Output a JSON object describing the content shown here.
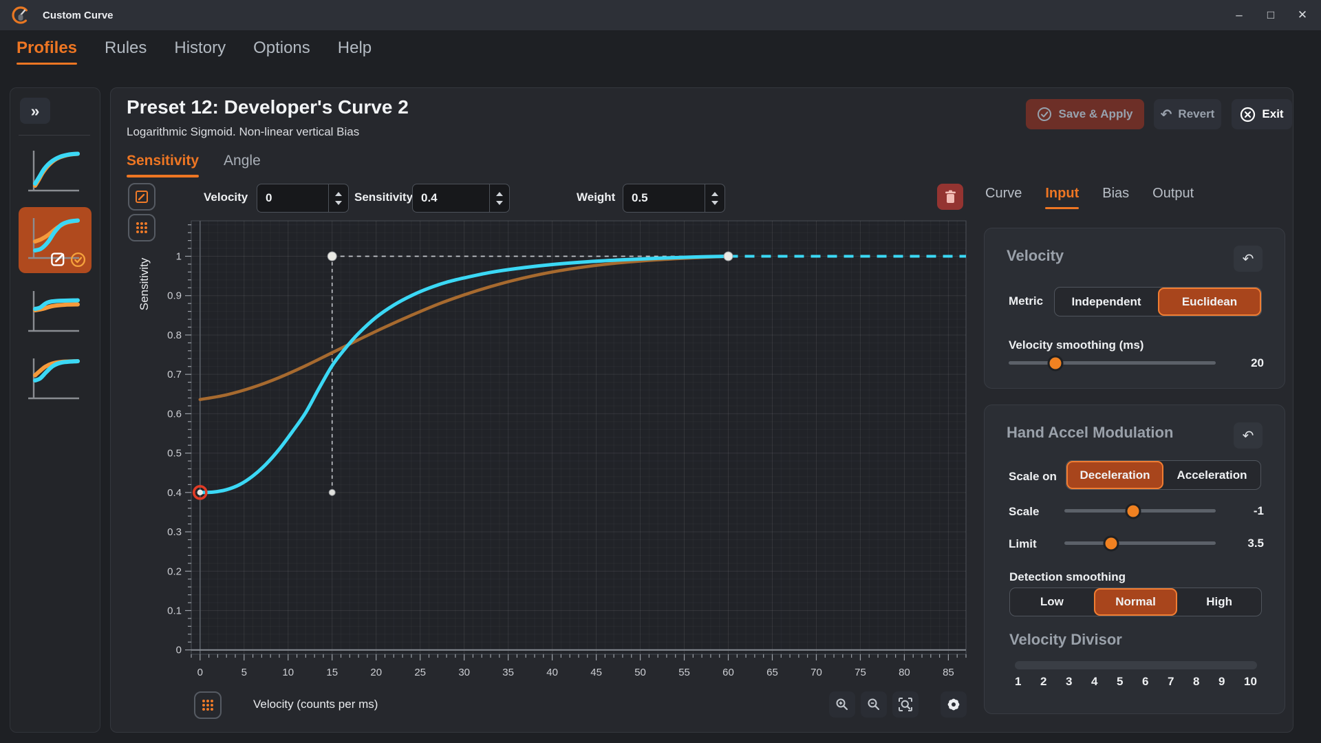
{
  "window": {
    "title": "Custom Curve",
    "controls": [
      "minimize",
      "maximize",
      "close"
    ]
  },
  "menu": {
    "items": [
      {
        "label": "Profiles",
        "active": true
      },
      {
        "label": "Rules",
        "active": false
      },
      {
        "label": "History",
        "active": false
      },
      {
        "label": "Options",
        "active": false
      },
      {
        "label": "Help",
        "active": false
      }
    ]
  },
  "sidebar": {
    "expand_icon": "»",
    "thumbnails": [
      {
        "selected": false,
        "cyan": [
          [
            0,
            0.08
          ],
          [
            0.1,
            0.28
          ],
          [
            0.22,
            0.52
          ],
          [
            0.38,
            0.72
          ],
          [
            0.58,
            0.86
          ],
          [
            0.8,
            0.93
          ],
          [
            1,
            0.95
          ]
        ],
        "orange": [
          [
            0,
            0.02
          ],
          [
            0.08,
            0.18
          ],
          [
            0.18,
            0.4
          ],
          [
            0.32,
            0.62
          ],
          [
            0.5,
            0.8
          ],
          [
            0.75,
            0.91
          ],
          [
            1,
            0.95
          ]
        ]
      },
      {
        "selected": true,
        "cyan": [
          [
            0,
            0.1
          ],
          [
            0.14,
            0.15
          ],
          [
            0.3,
            0.34
          ],
          [
            0.46,
            0.64
          ],
          [
            0.62,
            0.85
          ],
          [
            0.8,
            0.94
          ],
          [
            1,
            0.97
          ]
        ],
        "orange": [
          [
            0,
            0.36
          ],
          [
            0.15,
            0.43
          ],
          [
            0.32,
            0.56
          ],
          [
            0.52,
            0.76
          ],
          [
            0.72,
            0.9
          ],
          [
            1,
            0.97
          ]
        ]
      },
      {
        "selected": false,
        "cyan": [
          [
            0,
            0.52
          ],
          [
            0.12,
            0.56
          ],
          [
            0.28,
            0.7
          ],
          [
            0.5,
            0.75
          ],
          [
            1,
            0.77
          ]
        ],
        "orange": [
          [
            0,
            0.48
          ],
          [
            0.18,
            0.52
          ],
          [
            0.4,
            0.6
          ],
          [
            0.7,
            0.64
          ],
          [
            1,
            0.65
          ]
        ]
      },
      {
        "selected": false,
        "cyan": [
          [
            0,
            0.4
          ],
          [
            0.12,
            0.46
          ],
          [
            0.26,
            0.64
          ],
          [
            0.42,
            0.82
          ],
          [
            0.62,
            0.92
          ],
          [
            1,
            0.96
          ]
        ],
        "orange": [
          [
            0,
            0.55
          ],
          [
            0.1,
            0.66
          ],
          [
            0.24,
            0.8
          ],
          [
            0.4,
            0.89
          ],
          [
            0.62,
            0.94
          ],
          [
            1,
            0.96
          ]
        ]
      }
    ]
  },
  "header": {
    "title": "Preset 12: Developer's Curve 2",
    "subtitle": "Logarithmic Sigmoid. Non-linear vertical Bias"
  },
  "actions": {
    "save_label": "Save & Apply",
    "revert_label": "Revert",
    "exit_label": "Exit"
  },
  "editor_tabs": [
    {
      "label": "Sensitivity",
      "active": true
    },
    {
      "label": "Angle",
      "active": false
    }
  ],
  "point_editor": {
    "velocity": {
      "label": "Velocity",
      "value": "0"
    },
    "sensitivity": {
      "label": "Sensitivity",
      "value": "0.4"
    },
    "weight": {
      "label": "Weight",
      "value": "0.5"
    }
  },
  "chart_data": {
    "type": "line",
    "title": "",
    "xlabel": "Velocity (counts per ms)",
    "ylabel": "Sensitivity",
    "xlim": [
      -1,
      87
    ],
    "ylim": [
      -0.011,
      1.09
    ],
    "x_ticks": [
      0,
      5,
      10,
      15,
      20,
      25,
      30,
      35,
      40,
      45,
      50,
      55,
      60,
      65,
      70,
      75,
      80,
      85
    ],
    "y_ticks": [
      0,
      0.1,
      0.2,
      0.3,
      0.4,
      0.5,
      0.6,
      0.7,
      0.8,
      0.9,
      1
    ],
    "grid": {
      "minor_x": 1,
      "minor_y": 0.02,
      "major_x": 5,
      "major_y": 0.1,
      "on": true
    },
    "series": [
      {
        "name": "weighted-curve",
        "color": "#a76a2f",
        "width": 4.5,
        "points": [
          [
            0,
            0.636
          ],
          [
            3,
            0.648
          ],
          [
            6,
            0.667
          ],
          [
            9,
            0.692
          ],
          [
            12,
            0.722
          ],
          [
            15,
            0.755
          ],
          [
            18,
            0.788
          ],
          [
            21,
            0.82
          ],
          [
            24,
            0.85
          ],
          [
            27,
            0.878
          ],
          [
            30,
            0.902
          ],
          [
            33,
            0.923
          ],
          [
            36,
            0.941
          ],
          [
            40,
            0.96
          ],
          [
            44,
            0.974
          ],
          [
            48,
            0.984
          ],
          [
            52,
            0.991
          ],
          [
            56,
            0.996
          ],
          [
            60,
            1.0
          ]
        ]
      },
      {
        "name": "sensitivity-curve",
        "color": "#3bd8f5",
        "width": 5,
        "points": [
          [
            0,
            0.4
          ],
          [
            1.5,
            0.401
          ],
          [
            3,
            0.407
          ],
          [
            4.5,
            0.42
          ],
          [
            6,
            0.442
          ],
          [
            7.5,
            0.472
          ],
          [
            9,
            0.51
          ],
          [
            10.5,
            0.555
          ],
          [
            12,
            0.603
          ],
          [
            13.5,
            0.664
          ],
          [
            15,
            0.722
          ],
          [
            16.5,
            0.766
          ],
          [
            18,
            0.804
          ],
          [
            20,
            0.845
          ],
          [
            22,
            0.876
          ],
          [
            24,
            0.9
          ],
          [
            26,
            0.919
          ],
          [
            28,
            0.934
          ],
          [
            30,
            0.945
          ],
          [
            33,
            0.959
          ],
          [
            36,
            0.969
          ],
          [
            40,
            0.979
          ],
          [
            44,
            0.986
          ],
          [
            48,
            0.991
          ],
          [
            52,
            0.995
          ],
          [
            56,
            0.998
          ],
          [
            60,
            1.0
          ]
        ]
      }
    ],
    "extension": {
      "color": "#3bd8f5",
      "dashed": true,
      "from": [
        60,
        1
      ],
      "to": [
        87,
        1
      ]
    },
    "guides": [
      {
        "type": "v",
        "x": 15,
        "y1": 0.4,
        "y2": 1
      },
      {
        "type": "h",
        "y": 1,
        "x1": 15,
        "x2": 60
      }
    ],
    "control_points": [
      {
        "x": 0,
        "y": 0.4,
        "style": "selected"
      },
      {
        "x": 15,
        "y": 1,
        "style": "handle"
      },
      {
        "x": 60,
        "y": 1,
        "style": "handle"
      },
      {
        "x": 15,
        "y": 0.4,
        "style": "small"
      }
    ]
  },
  "footer": {
    "xlabel": "Velocity (counts per ms)"
  },
  "right_panel": {
    "tabs": [
      {
        "label": "Curve",
        "active": false
      },
      {
        "label": "Input",
        "active": true
      },
      {
        "label": "Bias",
        "active": false
      },
      {
        "label": "Output",
        "active": false
      }
    ],
    "velocity_card": {
      "title": "Velocity",
      "metric_label": "Metric",
      "metric_options": [
        {
          "label": "Independent",
          "active": false
        },
        {
          "label": "Euclidean",
          "active": true
        }
      ],
      "smoothing_label": "Velocity smoothing (ms)",
      "smoothing_value": "20",
      "smoothing_pos": 0.226
    },
    "hand_card": {
      "title": "Hand Accel Modulation",
      "scale_on_label": "Scale on",
      "scale_on_options": [
        {
          "label": "Deceleration",
          "active": true
        },
        {
          "label": "Acceleration",
          "active": false
        }
      ],
      "scale_slider": {
        "label": "Scale",
        "value": "-1",
        "pos": 0.455
      },
      "limit_slider": {
        "label": "Limit",
        "value": "3.5",
        "pos": 0.31
      },
      "detection_label": "Detection smoothing",
      "detection_options": [
        {
          "label": "Low",
          "active": false
        },
        {
          "label": "Normal",
          "active": true
        },
        {
          "label": "High",
          "active": false
        }
      ],
      "divisor_title": "Velocity Divisor",
      "divisor_numbers": [
        "1",
        "2",
        "3",
        "4",
        "5",
        "6",
        "7",
        "8",
        "9",
        "10"
      ]
    }
  },
  "colors": {
    "accent": "#ee7623",
    "active_segment": "#a8451c",
    "curve_cyan": "#3bd8f5",
    "curve_weighted": "#a76a2f",
    "selected_point_ring": "#e23b25"
  }
}
